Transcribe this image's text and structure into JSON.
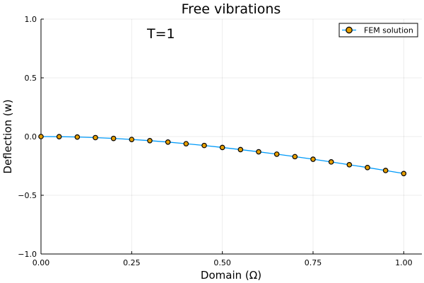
{
  "chart_data": {
    "type": "line",
    "title": "Free vibrations",
    "xlabel": "Domain (Ω)",
    "ylabel": "Deflection (w)",
    "xlim": [
      0,
      1.05
    ],
    "ylim": [
      -1.0,
      1.0
    ],
    "x_ticks": [
      0.0,
      0.25,
      0.5,
      0.75,
      1.0
    ],
    "x_tick_labels": [
      "0.00",
      "0.25",
      "0.50",
      "0.75",
      "1.00"
    ],
    "y_ticks": [
      -1.0,
      -0.5,
      0.0,
      0.5,
      1.0
    ],
    "y_tick_labels": [
      "−1.0",
      "−0.5",
      "0.0",
      "0.5",
      "1.0"
    ],
    "grid": true,
    "legend_position": "top-right",
    "annotation": "T=1",
    "series": [
      {
        "name": "FEM solution",
        "line_color": "#009af9",
        "marker_color": "#e69f00",
        "x": [
          0.0,
          0.05,
          0.1,
          0.15,
          0.2,
          0.25,
          0.3,
          0.35,
          0.4,
          0.45,
          0.5,
          0.55,
          0.6,
          0.65,
          0.7,
          0.75,
          0.8,
          0.85,
          0.9,
          0.95,
          1.0
        ],
        "y": [
          0.0,
          -0.001,
          -0.004,
          -0.009,
          -0.016,
          -0.025,
          -0.035,
          -0.047,
          -0.061,
          -0.076,
          -0.093,
          -0.111,
          -0.13,
          -0.15,
          -0.171,
          -0.193,
          -0.216,
          -0.24,
          -0.264,
          -0.289,
          -0.315
        ]
      }
    ]
  }
}
